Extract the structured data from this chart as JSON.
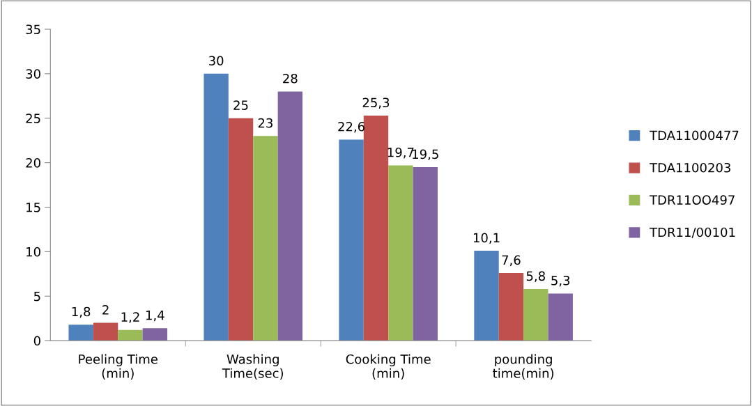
{
  "chart_data": {
    "type": "bar",
    "categories": [
      "Peeling Time\n(min)",
      "Washing\nTime(sec)",
      "Cooking Time\n(min)",
      "pounding\ntime(min)"
    ],
    "series": [
      {
        "name": "TDA11000477",
        "color": "#4f81bd",
        "values": [
          1.8,
          30,
          22.6,
          10.1
        ],
        "value_labels": [
          "1,8",
          "30",
          "22,6",
          "10,1"
        ]
      },
      {
        "name": "TDA1100203",
        "color": "#c0504d",
        "values": [
          2,
          25,
          25.3,
          7.6
        ],
        "value_labels": [
          "2",
          "25",
          "25,3",
          "7,6"
        ]
      },
      {
        "name": "TDR11OO497",
        "color": "#9bbb59",
        "values": [
          1.2,
          23,
          19.7,
          5.8
        ],
        "value_labels": [
          "1,2",
          "23",
          "19,7",
          "5,8"
        ]
      },
      {
        "name": "TDR11/00101",
        "color": "#8064a2",
        "values": [
          1.4,
          28,
          19.5,
          5.3
        ],
        "value_labels": [
          "1,4",
          "28",
          "19,5",
          "5,3"
        ]
      }
    ],
    "ylim": [
      0,
      35
    ],
    "yticks": [
      0,
      5,
      10,
      15,
      20,
      25,
      30,
      35
    ],
    "grid": false,
    "legend": "right"
  }
}
